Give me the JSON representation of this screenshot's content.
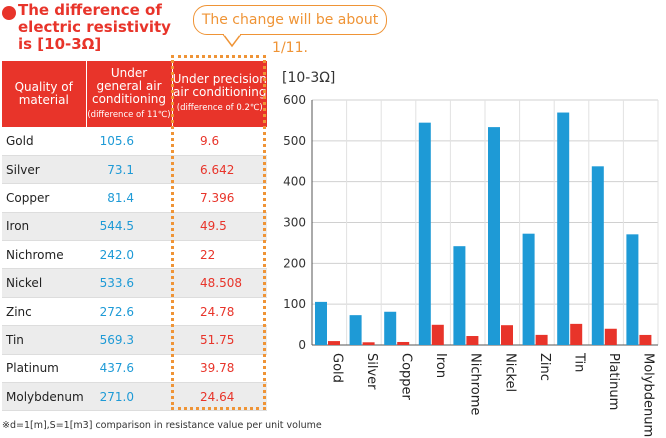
{
  "title": "The difference of electric resistivity is [10-3Ω]",
  "callout": "The change will be about 1/11.",
  "table": {
    "headers": {
      "material": "Quality of material",
      "general": "Under general air conditioning",
      "general_sub": "(difference of 11℃)",
      "precision": "Under precision air conditioning",
      "precision_sub": "(difference of 0.2℃)"
    },
    "rows": [
      {
        "material": "Gold",
        "general": "105.6",
        "precision": "9.6"
      },
      {
        "material": "Silver",
        "general": "73.1",
        "precision": "6.642"
      },
      {
        "material": "Copper",
        "general": "81.4",
        "precision": "7.396"
      },
      {
        "material": "Iron",
        "general": "544.5",
        "precision": "49.5"
      },
      {
        "material": "Nichrome",
        "general": "242.0",
        "precision": "22"
      },
      {
        "material": "Nickel",
        "general": "533.6",
        "precision": "48.508"
      },
      {
        "material": "Zinc",
        "general": "272.6",
        "precision": "24.78"
      },
      {
        "material": "Tin",
        "general": "569.3",
        "precision": "51.75"
      },
      {
        "material": "Platinum",
        "general": "437.6",
        "precision": "39.78"
      },
      {
        "material": "Molybdenum",
        "general": "271.0",
        "precision": "24.64"
      }
    ]
  },
  "footnote": "※d=1[m],S=1[m3] comparison in resistance value per unit volume",
  "colors": {
    "red": "#e8342a",
    "blue": "#1e9ad6",
    "orange": "#ef9436"
  },
  "chart_data": {
    "type": "bar",
    "ylabel": "[10-3Ω]",
    "ylim": [
      0,
      600
    ],
    "yticks": [
      0,
      100,
      200,
      300,
      400,
      500,
      600
    ],
    "grid": true,
    "categories": [
      "Gold",
      "Silver",
      "Copper",
      "Iron",
      "Nichrome",
      "Nickel",
      "Zinc",
      "Tin",
      "Platinum",
      "Molybdenum"
    ],
    "series": [
      {
        "values": [
          105.6,
          73.1,
          81.4,
          544.5,
          242.0,
          533.6,
          272.6,
          569.3,
          437.6,
          271.0
        ],
        "color": "#1e9ad6"
      },
      {
        "values": [
          9.6,
          6.642,
          7.396,
          49.5,
          22,
          48.508,
          24.78,
          51.75,
          39.78,
          24.64
        ],
        "color": "#e8342a"
      }
    ]
  }
}
